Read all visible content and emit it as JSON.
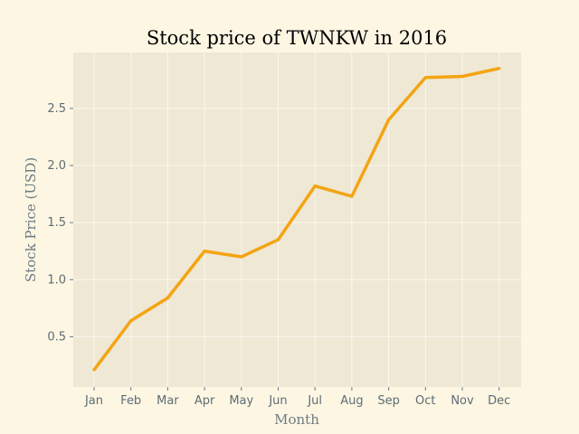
{
  "chart_data": {
    "type": "line",
    "title": "Stock price of TWNKW in 2016",
    "xlabel": "Month",
    "ylabel": "Stock Price (USD)",
    "categories": [
      "Jan",
      "Feb",
      "Mar",
      "Apr",
      "May",
      "Jun",
      "Jul",
      "Aug",
      "Sep",
      "Oct",
      "Nov",
      "Dec"
    ],
    "series": [
      {
        "values": [
          0.21,
          0.64,
          0.84,
          1.25,
          1.2,
          1.35,
          1.82,
          1.73,
          2.4,
          2.77,
          2.78,
          2.85
        ]
      }
    ],
    "ylim": [
      0.06,
      2.99
    ],
    "yticks": [
      0.5,
      1.0,
      1.5,
      2.0,
      2.5
    ],
    "grid": true,
    "colors": {
      "background": "#fdf6e3",
      "plot_background": "#eee8d5",
      "grid": "#fbf7ec",
      "line": "#f4a413",
      "tick": "#6b7b82"
    }
  }
}
